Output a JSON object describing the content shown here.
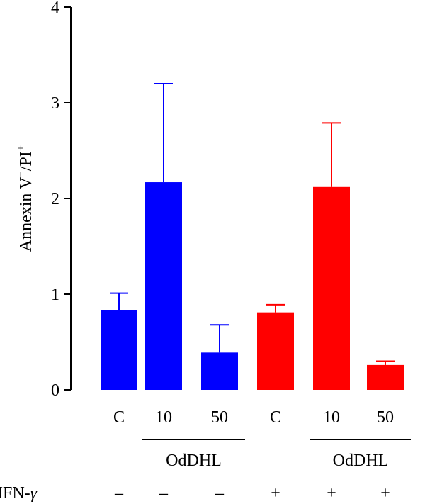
{
  "chart_data": {
    "type": "bar",
    "ylabel": "Annexin V",
    "ylabel_sup1": "−",
    "ylabel_mid": "/PI",
    "ylabel_sup2": "+",
    "ylim": [
      0,
      4
    ],
    "yticks": [
      "0",
      "1",
      "2",
      "3",
      "4"
    ],
    "categories": [
      "C",
      "10",
      "50",
      "C",
      "10",
      "50"
    ],
    "values": [
      0.83,
      2.17,
      0.39,
      0.81,
      2.12,
      0.26
    ],
    "errors": [
      0.18,
      1.03,
      0.29,
      0.08,
      0.67,
      0.04
    ],
    "bar_colors": [
      "#0000ff",
      "#0000ff",
      "#0000ff",
      "#ff0000",
      "#ff0000",
      "#ff0000"
    ],
    "groups": [
      {
        "label": "OdDHL",
        "from": 1,
        "to": 2
      },
      {
        "label": "OdDHL",
        "from": 4,
        "to": 5
      }
    ],
    "ifn_label": "IFN-",
    "ifn_gamma": "γ",
    "ifn_signs": [
      "–",
      "–",
      "–",
      "+",
      "+",
      "+"
    ]
  }
}
